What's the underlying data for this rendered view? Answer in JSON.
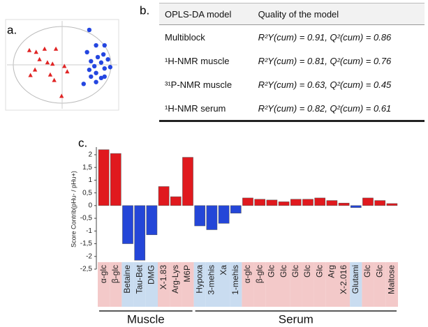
{
  "panel_labels": [
    "a.",
    "b.",
    "c."
  ],
  "table": {
    "header": [
      "OPLS-DA model",
      "Quality of the model"
    ],
    "rows": [
      [
        "Multiblock",
        "R²Y(cum) = 0.91, Q²(cum) = 0.86"
      ],
      [
        "¹H-NMR muscle",
        "R²Y(cum) = 0.81, Q²(cum) = 0.76"
      ],
      [
        "³¹P-NMR muscle",
        "R²Y(cum) = 0.63, Q²(cum) = 0.45"
      ],
      [
        "¹H-NMR serum",
        "R²Y(cum) = 0.82, Q²(cum) = 0.61"
      ]
    ]
  },
  "chart_data": [
    {
      "type": "scatter",
      "xlim": [
        -1,
        1
      ],
      "ylim": [
        -1,
        1
      ],
      "series": [
        {
          "color": "#e02424",
          "marker": "triangle",
          "x": [
            -0.58,
            -0.46,
            -0.31,
            -0.11,
            -0.4,
            -0.26,
            -0.17,
            0.04,
            0.09,
            -0.48,
            -0.56,
            -0.21,
            -0.14,
            -0.01
          ],
          "y": [
            0.32,
            0.28,
            0.35,
            0.35,
            0.12,
            0.05,
            0.02,
            -0.03,
            -0.15,
            -0.11,
            -0.23,
            -0.22,
            -0.34,
            -0.69
          ]
        },
        {
          "color": "#2446e0",
          "marker": "circle",
          "x": [
            0.48,
            0.6,
            0.75,
            0.44,
            0.73,
            0.63,
            0.81,
            0.51,
            0.69,
            0.57,
            0.75,
            0.85,
            0.48,
            0.6,
            0.51,
            0.69,
            0.38,
            0.75,
            0.6
          ],
          "y": [
            0.77,
            0.43,
            0.43,
            0.28,
            0.23,
            0.17,
            0.12,
            0.08,
            0.05,
            -0.03,
            -0.08,
            -0.05,
            -0.11,
            -0.18,
            -0.26,
            -0.29,
            -0.42,
            -0.26,
            -0.38
          ]
        }
      ]
    },
    {
      "type": "bar",
      "y_label": "Score Contrib(pHu- / pHu+)",
      "categories": [
        "α-glc",
        "β-glc",
        "Betaine",
        "Tau-Bet",
        "DMG",
        "X-1.83",
        "Arg-Lys",
        "M6P",
        "Hypoxa",
        "3-mehis",
        "Xa",
        "1-mehis",
        "α-glc",
        "β-glc",
        "Glc",
        "Glc",
        "Glc",
        "Glc",
        "Glc",
        "Arg",
        "X-2.016",
        "Glutami",
        "Glc",
        "Glc",
        "Maltose"
      ],
      "values": [
        2.2,
        2.05,
        -1.5,
        -2.15,
        -1.15,
        0.75,
        0.35,
        1.9,
        -0.8,
        -0.95,
        -0.7,
        -0.3,
        0.3,
        0.25,
        0.22,
        0.15,
        0.25,
        0.25,
        0.3,
        0.2,
        0.1,
        -0.08,
        0.3,
        0.2,
        0.08
      ],
      "groups": [
        "Muscle",
        "Serum"
      ],
      "colors": {
        "positive": "#e0191e",
        "negative": "#2446d8"
      },
      "label_band_colors": {
        "positive": "#f3c9c9",
        "negative": "#c9dcf0"
      },
      "ylim": [
        -2.5,
        2.3
      ],
      "yticks": [
        2,
        {
          "value": 1.5,
          "label": "1,5"
        },
        1,
        {
          "value": 0.5,
          "label": "0,5"
        },
        0,
        {
          "value": -0.5,
          "label": "-0,5"
        },
        -1,
        {
          "value": -1.5,
          "label": "-1,5"
        },
        -2,
        {
          "value": -2.5,
          "label": "-2,5"
        }
      ]
    }
  ]
}
